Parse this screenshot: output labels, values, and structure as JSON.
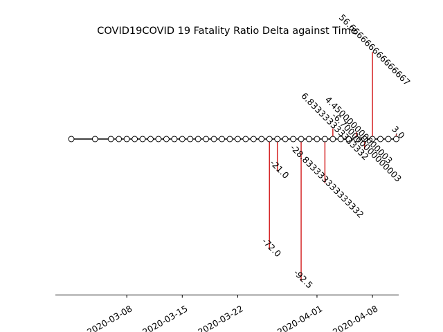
{
  "chart_data": {
    "type": "stem",
    "title": "COVID19COVID 19 Fatality Ratio Delta against Time",
    "xlabel": "",
    "ylabel": "",
    "axis_visible": {
      "left": false,
      "top": false,
      "right": false,
      "bottom": true
    },
    "grid": false,
    "x_ticks": [
      "2020-03-08",
      "2020-03-15",
      "2020-03-22",
      "2020-04-01",
      "2020-04-08"
    ],
    "dates": [
      "2020-03-01",
      "2020-03-04",
      "2020-03-06",
      "2020-03-07",
      "2020-03-08",
      "2020-03-09",
      "2020-03-10",
      "2020-03-11",
      "2020-03-12",
      "2020-03-13",
      "2020-03-14",
      "2020-03-15",
      "2020-03-16",
      "2020-03-17",
      "2020-03-18",
      "2020-03-19",
      "2020-03-20",
      "2020-03-21",
      "2020-03-22",
      "2020-03-23",
      "2020-03-24",
      "2020-03-25",
      "2020-03-26",
      "2020-03-27",
      "2020-03-28",
      "2020-03-29",
      "2020-03-30",
      "2020-03-31",
      "2020-04-01",
      "2020-04-02",
      "2020-04-03",
      "2020-04-04",
      "2020-04-05",
      "2020-04-06",
      "2020-04-07",
      "2020-04-08",
      "2020-04-09",
      "2020-04-10",
      "2020-04-11"
    ],
    "values": [
      0,
      0,
      0,
      0,
      0,
      0,
      0,
      0,
      0,
      0,
      0,
      0,
      0,
      0,
      0,
      0,
      0,
      0,
      0,
      0,
      0,
      0,
      -72.0,
      -21.0,
      0,
      0,
      -92.5,
      0,
      0,
      -28.833333333333332,
      6.833333333333332,
      0,
      0,
      4.450000000000003,
      -6.700000000000003,
      56.666666666666664,
      0,
      0,
      3.0
    ],
    "annotations": [
      {
        "date": "2020-03-26",
        "text": "-72.0"
      },
      {
        "date": "2020-03-27",
        "text": "-21.0"
      },
      {
        "date": "2020-03-30",
        "text": "-92.5"
      },
      {
        "date": "2020-04-02",
        "text": "-28.833333333333332"
      },
      {
        "date": "2020-04-03",
        "text": "6.833333333333332"
      },
      {
        "date": "2020-04-06",
        "text": "4.450000000000003"
      },
      {
        "date": "2020-04-07",
        "text": "-6.700000000000003"
      },
      {
        "date": "2020-04-08",
        "text": "56.666666666666667"
      },
      {
        "date": "2020-04-11",
        "text": "3.0"
      }
    ],
    "colors": {
      "stem": "#d62728",
      "baseline": "#000000",
      "marker_face": "#ffffff",
      "marker_edge": "#000000"
    }
  }
}
